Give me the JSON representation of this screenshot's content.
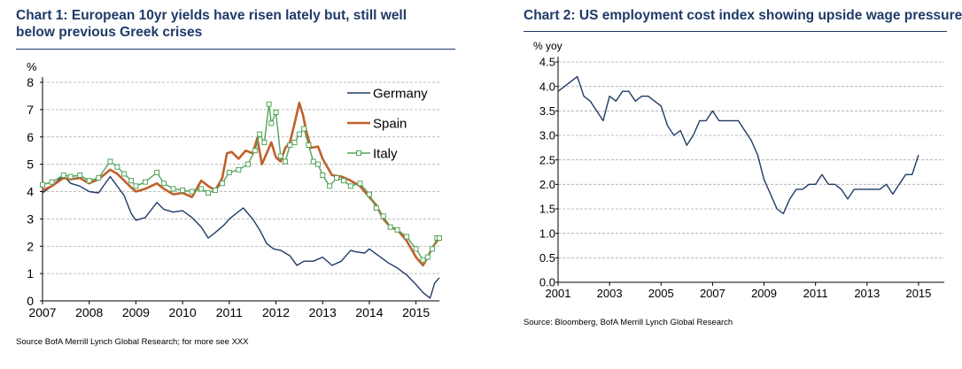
{
  "chart_data": [
    {
      "type": "line",
      "title": "Chart 1:  European 10yr yields have risen lately but, still well below previous Greek crises",
      "ylabel": "%",
      "xlabel": "",
      "ylim": [
        0,
        8
      ],
      "xlim": [
        2007,
        2015.5
      ],
      "yticks": [
        0,
        1,
        2,
        3,
        4,
        5,
        6,
        7,
        8
      ],
      "xticks": [
        "2007",
        "2008",
        "2009",
        "2010",
        "2011",
        "2012",
        "2013",
        "2014",
        "2015"
      ],
      "grid": true,
      "legend": "top-right",
      "source": "Source BofA Merrill Lynch Global Research; for more see XXX",
      "series": [
        {
          "name": "Germany",
          "color": "#1f3a68",
          "marker": "none",
          "x": [
            2007.0,
            2007.2,
            2007.45,
            2007.6,
            2007.8,
            2008.0,
            2008.2,
            2008.45,
            2008.6,
            2008.75,
            2008.9,
            2009.0,
            2009.2,
            2009.45,
            2009.6,
            2009.8,
            2010.0,
            2010.2,
            2010.4,
            2010.55,
            2010.7,
            2010.9,
            2011.0,
            2011.15,
            2011.3,
            2011.5,
            2011.65,
            2011.8,
            2011.95,
            2012.1,
            2012.3,
            2012.45,
            2012.6,
            2012.8,
            2013.0,
            2013.2,
            2013.4,
            2013.6,
            2013.7,
            2013.9,
            2014.0,
            2014.2,
            2014.4,
            2014.6,
            2014.8,
            2015.0,
            2015.15,
            2015.3,
            2015.4,
            2015.5
          ],
          "values": [
            3.95,
            4.2,
            4.6,
            4.3,
            4.2,
            4.0,
            3.95,
            4.55,
            4.2,
            3.85,
            3.2,
            2.95,
            3.05,
            3.6,
            3.35,
            3.25,
            3.3,
            3.05,
            2.7,
            2.3,
            2.5,
            2.8,
            3.0,
            3.2,
            3.4,
            3.0,
            2.6,
            2.1,
            1.9,
            1.85,
            1.65,
            1.3,
            1.45,
            1.45,
            1.6,
            1.3,
            1.45,
            1.85,
            1.8,
            1.75,
            1.9,
            1.65,
            1.4,
            1.2,
            0.95,
            0.6,
            0.3,
            0.1,
            0.65,
            0.85
          ]
        },
        {
          "name": "Spain",
          "color": "#c0602b",
          "marker": "none",
          "x": [
            2007.0,
            2007.2,
            2007.45,
            2007.6,
            2007.8,
            2008.0,
            2008.2,
            2008.45,
            2008.6,
            2008.75,
            2008.9,
            2009.0,
            2009.2,
            2009.45,
            2009.6,
            2009.8,
            2010.0,
            2010.2,
            2010.4,
            2010.55,
            2010.7,
            2010.85,
            2010.95,
            2011.05,
            2011.2,
            2011.35,
            2011.5,
            2011.6,
            2011.7,
            2011.8,
            2011.9,
            2012.0,
            2012.1,
            2012.2,
            2012.3,
            2012.4,
            2012.5,
            2012.58,
            2012.65,
            2012.75,
            2012.9,
            2013.0,
            2013.2,
            2013.4,
            2013.6,
            2013.8,
            2014.0,
            2014.15,
            2014.3,
            2014.45,
            2014.6,
            2014.8,
            2015.0,
            2015.15,
            2015.25,
            2015.35,
            2015.45,
            2015.5
          ],
          "values": [
            4.05,
            4.2,
            4.5,
            4.45,
            4.5,
            4.3,
            4.45,
            4.8,
            4.65,
            4.4,
            4.15,
            4.0,
            4.1,
            4.3,
            4.1,
            3.9,
            3.95,
            3.8,
            4.4,
            4.2,
            4.05,
            4.5,
            5.4,
            5.45,
            5.2,
            5.5,
            5.4,
            5.95,
            5.0,
            5.4,
            5.8,
            5.25,
            5.1,
            5.6,
            5.8,
            6.5,
            7.25,
            6.8,
            6.2,
            5.6,
            5.65,
            5.2,
            4.6,
            4.55,
            4.4,
            4.2,
            3.8,
            3.5,
            3.0,
            2.7,
            2.6,
            2.2,
            1.6,
            1.3,
            1.6,
            1.95,
            2.2,
            2.25
          ]
        },
        {
          "name": "Italy",
          "color": "#52a55a",
          "marker": "open-square",
          "x": [
            2007.0,
            2007.2,
            2007.45,
            2007.6,
            2007.8,
            2008.0,
            2008.2,
            2008.45,
            2008.6,
            2008.75,
            2008.9,
            2009.0,
            2009.2,
            2009.45,
            2009.6,
            2009.8,
            2010.0,
            2010.2,
            2010.4,
            2010.55,
            2010.7,
            2010.85,
            2011.0,
            2011.2,
            2011.4,
            2011.55,
            2011.65,
            2011.75,
            2011.85,
            2011.9,
            2012.0,
            2012.1,
            2012.2,
            2012.3,
            2012.4,
            2012.5,
            2012.6,
            2012.7,
            2012.8,
            2012.9,
            2013.0,
            2013.15,
            2013.3,
            2013.45,
            2013.6,
            2013.8,
            2014.0,
            2014.15,
            2014.3,
            2014.45,
            2014.6,
            2014.8,
            2015.0,
            2015.15,
            2015.25,
            2015.35,
            2015.45,
            2015.5
          ],
          "values": [
            4.25,
            4.35,
            4.6,
            4.55,
            4.6,
            4.4,
            4.5,
            5.1,
            4.9,
            4.65,
            4.4,
            4.2,
            4.35,
            4.7,
            4.3,
            4.1,
            4.05,
            4.0,
            4.1,
            3.95,
            4.05,
            4.3,
            4.7,
            4.8,
            5.0,
            5.5,
            6.1,
            5.8,
            7.2,
            6.5,
            6.9,
            5.3,
            5.1,
            5.7,
            5.8,
            6.1,
            6.3,
            5.7,
            5.1,
            5.0,
            4.6,
            4.2,
            4.5,
            4.4,
            4.2,
            4.3,
            3.9,
            3.4,
            3.1,
            2.7,
            2.6,
            2.35,
            1.9,
            1.5,
            1.6,
            1.9,
            2.3,
            2.3
          ]
        }
      ]
    },
    {
      "type": "line",
      "title": "Chart 2:  US employment cost index showing upside wage pressure",
      "ylabel": "% yoy",
      "xlabel": "",
      "ylim": [
        0,
        4.5
      ],
      "xlim": [
        2001,
        2016
      ],
      "yticks": [
        "0.0",
        "0.5",
        "1.0",
        "1.5",
        "2.0",
        "2.5",
        "3.0",
        "3.5",
        "4.0",
        "4.5"
      ],
      "xticks": [
        "2001",
        "2003",
        "2005",
        "2007",
        "2009",
        "2011",
        "2013",
        "2015"
      ],
      "grid": true,
      "legend": "none",
      "source": "Source: Bloomberg, BofA Merrill Lynch Global Research",
      "series": [
        {
          "name": "US employment cost index",
          "color": "#1f3a68",
          "x": [
            2001.0,
            2001.25,
            2001.5,
            2001.75,
            2002.0,
            2002.25,
            2002.5,
            2002.75,
            2003.0,
            2003.25,
            2003.5,
            2003.75,
            2004.0,
            2004.25,
            2004.5,
            2004.75,
            2005.0,
            2005.25,
            2005.5,
            2005.75,
            2006.0,
            2006.25,
            2006.5,
            2006.75,
            2007.0,
            2007.25,
            2007.5,
            2007.75,
            2008.0,
            2008.25,
            2008.5,
            2008.75,
            2009.0,
            2009.25,
            2009.5,
            2009.75,
            2010.0,
            2010.25,
            2010.5,
            2010.75,
            2011.0,
            2011.25,
            2011.5,
            2011.75,
            2012.0,
            2012.25,
            2012.5,
            2012.75,
            2013.0,
            2013.25,
            2013.5,
            2013.75,
            2014.0,
            2014.25,
            2014.5,
            2014.75,
            2015.0
          ],
          "values": [
            3.9,
            4.0,
            4.1,
            4.2,
            3.8,
            3.7,
            3.5,
            3.3,
            3.8,
            3.7,
            3.9,
            3.9,
            3.7,
            3.8,
            3.8,
            3.7,
            3.6,
            3.2,
            3.0,
            3.1,
            2.8,
            3.0,
            3.3,
            3.3,
            3.5,
            3.3,
            3.3,
            3.3,
            3.3,
            3.1,
            2.9,
            2.6,
            2.1,
            1.8,
            1.5,
            1.4,
            1.7,
            1.9,
            1.9,
            2.0,
            2.0,
            2.2,
            2.0,
            2.0,
            1.9,
            1.7,
            1.9,
            1.9,
            1.9,
            1.9,
            1.9,
            2.0,
            1.8,
            2.0,
            2.2,
            2.2,
            2.6
          ]
        }
      ]
    }
  ]
}
